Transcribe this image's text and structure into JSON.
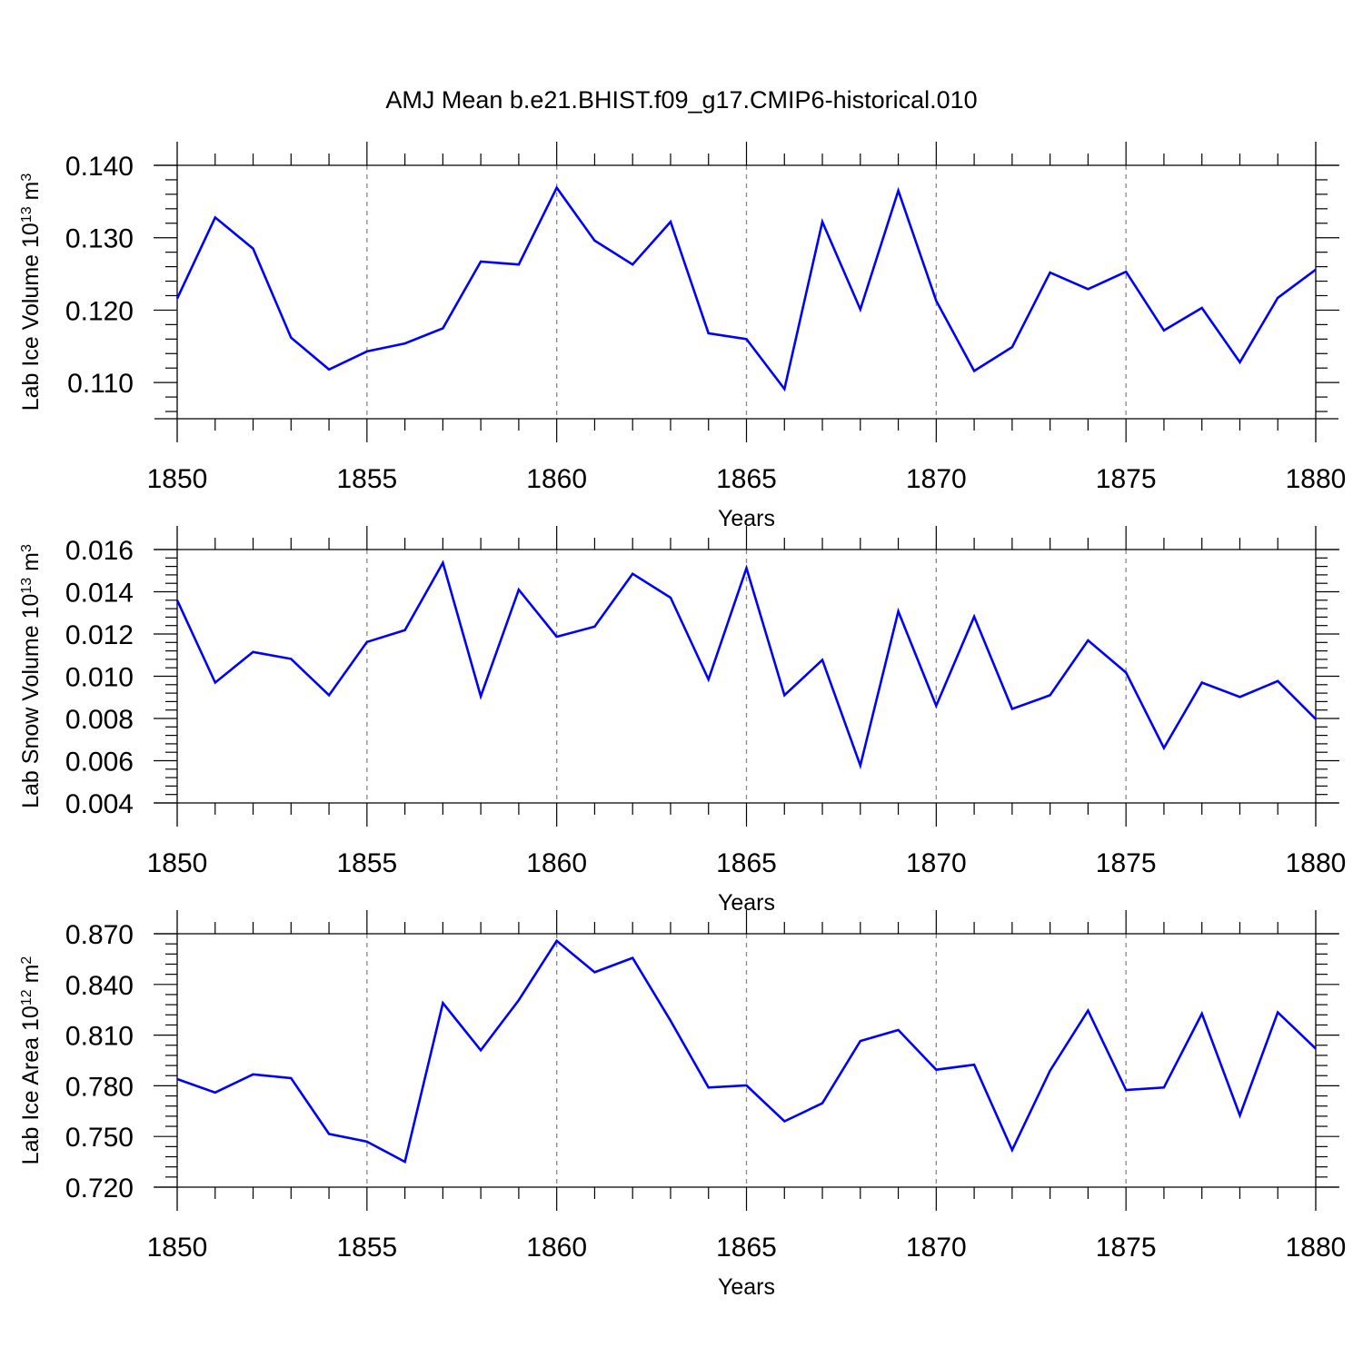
{
  "figure": {
    "title": "AMJ Mean b.e21.BHIST.f09_g17.CMIP6-historical.010",
    "line_color": "#0000ff",
    "grid_color": "#888888"
  },
  "chart_data": [
    {
      "type": "line",
      "xlabel": "Years",
      "ylabel": {
        "text": "Lab Ice Volume 10",
        "exp": "13",
        "unit": " m",
        "unit_exp": "3"
      },
      "xlim": [
        1850,
        1880
      ],
      "ylim": [
        0.105,
        0.14
      ],
      "yticks": [
        {
          "v": 0.11,
          "label": "0.110"
        },
        {
          "v": 0.12,
          "label": "0.120"
        },
        {
          "v": 0.13,
          "label": "0.130"
        },
        {
          "v": 0.14,
          "label": "0.140"
        }
      ],
      "xticks": [
        1850,
        1855,
        1860,
        1865,
        1870,
        1875,
        1880
      ],
      "ygrid": false,
      "xgrid_dashed": true,
      "series": [
        {
          "x": [
            1850,
            1851,
            1852,
            1853,
            1854,
            1855,
            1856,
            1857,
            1858,
            1859,
            1860,
            1861,
            1862,
            1863,
            1864,
            1865,
            1866,
            1867,
            1868,
            1869,
            1870,
            1871,
            1872,
            1873,
            1874,
            1875,
            1876,
            1877,
            1878,
            1879,
            1880
          ],
          "values": [
            0.1216,
            0.1328,
            0.1285,
            0.1162,
            0.1118,
            0.1143,
            0.1154,
            0.1175,
            0.1267,
            0.1263,
            0.1369,
            0.1296,
            0.1263,
            0.1322,
            0.1168,
            0.116,
            0.1091,
            0.1322,
            0.1201,
            0.1365,
            0.1213,
            0.1116,
            0.1149,
            0.1252,
            0.1229,
            0.1253,
            0.1172,
            0.1203,
            0.1128,
            0.1217,
            0.1256
          ]
        }
      ]
    },
    {
      "type": "line",
      "xlabel": "Years",
      "ylabel": {
        "text": "Lab Snow Volume 10",
        "exp": "13",
        "unit": " m",
        "unit_exp": "3"
      },
      "xlim": [
        1850,
        1880
      ],
      "ylim": [
        0.004,
        0.016
      ],
      "yticks": [
        {
          "v": 0.004,
          "label": "0.004"
        },
        {
          "v": 0.006,
          "label": "0.006"
        },
        {
          "v": 0.008,
          "label": "0.008"
        },
        {
          "v": 0.01,
          "label": "0.010"
        },
        {
          "v": 0.012,
          "label": "0.012"
        },
        {
          "v": 0.014,
          "label": "0.014"
        },
        {
          "v": 0.016,
          "label": "0.016"
        }
      ],
      "xticks": [
        1850,
        1855,
        1860,
        1865,
        1870,
        1875,
        1880
      ],
      "ygrid": false,
      "xgrid_dashed": true,
      "series": [
        {
          "x": [
            1850,
            1851,
            1852,
            1853,
            1854,
            1855,
            1856,
            1857,
            1858,
            1859,
            1860,
            1861,
            1862,
            1863,
            1864,
            1865,
            1866,
            1867,
            1868,
            1869,
            1870,
            1871,
            1872,
            1873,
            1874,
            1875,
            1876,
            1877,
            1878,
            1879,
            1880
          ],
          "values": [
            0.0136,
            0.0097,
            0.01115,
            0.01082,
            0.0091,
            0.01162,
            0.01218,
            0.01537,
            0.00905,
            0.0141,
            0.01187,
            0.01235,
            0.01485,
            0.01372,
            0.00985,
            0.01512,
            0.0091,
            0.01077,
            0.00577,
            0.01307,
            0.0086,
            0.01282,
            0.00845,
            0.0091,
            0.0117,
            0.01017,
            0.0066,
            0.0097,
            0.00902,
            0.00977,
            0.00797
          ]
        }
      ]
    },
    {
      "type": "line",
      "xlabel": "Years",
      "ylabel": {
        "text": "Lab Ice Area 10",
        "exp": "12",
        "unit": " m",
        "unit_exp": "2"
      },
      "xlim": [
        1850,
        1880
      ],
      "ylim": [
        0.72,
        0.87
      ],
      "yticks": [
        {
          "v": 0.72,
          "label": "0.720"
        },
        {
          "v": 0.75,
          "label": "0.750"
        },
        {
          "v": 0.78,
          "label": "0.780"
        },
        {
          "v": 0.81,
          "label": "0.810"
        },
        {
          "v": 0.84,
          "label": "0.840"
        },
        {
          "v": 0.87,
          "label": "0.870"
        }
      ],
      "xticks": [
        1850,
        1855,
        1860,
        1865,
        1870,
        1875,
        1880
      ],
      "ygrid": false,
      "xgrid_dashed": true,
      "series": [
        {
          "x": [
            1850,
            1851,
            1852,
            1853,
            1854,
            1855,
            1856,
            1857,
            1858,
            1859,
            1860,
            1861,
            1862,
            1863,
            1864,
            1865,
            1866,
            1867,
            1868,
            1869,
            1870,
            1871,
            1872,
            1873,
            1874,
            1875,
            1876,
            1877,
            1878,
            1879,
            1880
          ],
          "values": [
            0.784,
            0.776,
            0.7868,
            0.7845,
            0.7515,
            0.747,
            0.735,
            0.829,
            0.801,
            0.8307,
            0.8658,
            0.8472,
            0.8557,
            0.8185,
            0.779,
            0.7802,
            0.759,
            0.7697,
            0.8065,
            0.813,
            0.7895,
            0.7925,
            0.742,
            0.789,
            0.8245,
            0.7775,
            0.779,
            0.8227,
            0.7625,
            0.8235,
            0.802
          ]
        }
      ]
    }
  ]
}
